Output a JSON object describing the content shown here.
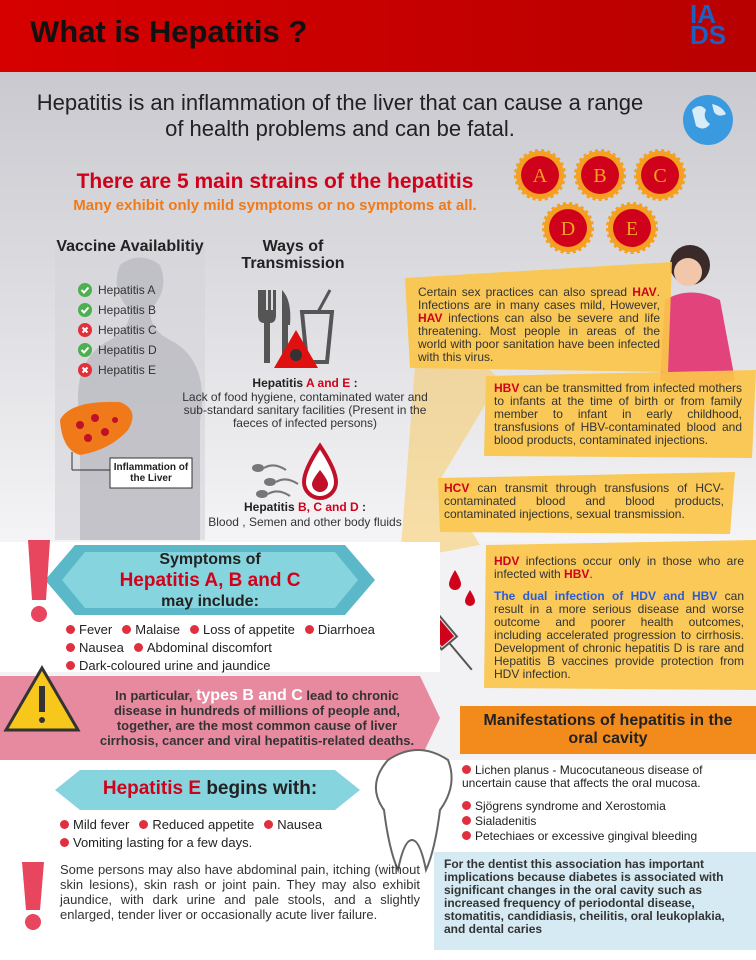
{
  "header": {
    "title": "What is Hepatitis ?",
    "logo": "IADS"
  },
  "intro": "Hepatitis is an inflammation of the liver that can cause a range of health problems and can be fatal.",
  "strains": {
    "title": "There are 5 main strains of the hepatitis",
    "subtitle": "Many exhibit only mild symptoms or no symptoms at all.",
    "letters": [
      "A",
      "B",
      "C",
      "D",
      "E"
    ]
  },
  "vaccine": {
    "title": "Vaccine Availablitiy",
    "items": [
      {
        "label": "Hepatitis A",
        "available": true
      },
      {
        "label": "Hepatitis B",
        "available": true
      },
      {
        "label": "Hepatitis C",
        "available": false
      },
      {
        "label": "Hepatitis D",
        "available": true
      },
      {
        "label": "Hepatitis E",
        "available": false
      }
    ]
  },
  "liver": {
    "label": "Inflammation of the Liver"
  },
  "transmission": {
    "title": "Ways of Transmission",
    "groups": [
      {
        "heading": [
          {
            "text": "Hepatitis "
          },
          {
            "text": "A and E",
            "color": "#d0021b"
          },
          {
            "text": " :"
          }
        ],
        "text": "Lack of food hygiene, contaminated water and sub-standard sanitary facilities (Present in the faeces of infected persons)"
      },
      {
        "heading": [
          {
            "text": "Hepatitis "
          },
          {
            "text": "B, C and D",
            "color": "#d0021b"
          },
          {
            "text": " :"
          }
        ],
        "text": "Blood , Semen and other body fluids"
      }
    ]
  },
  "notes": [
    [
      {
        "text": "Certain sex practices can also spread "
      },
      {
        "text": "HAV",
        "color": "#d0021b"
      },
      {
        "text": ". Infections are in many cases mild, However, "
      },
      {
        "text": "HAV",
        "color": "#d0021b"
      },
      {
        "text": " infections can also be severe and life threatening. Most people in areas of the world with poor sanitation have been infected with this virus."
      }
    ],
    [
      {
        "text": "HBV",
        "color": "#d0021b"
      },
      {
        "text": " can be transmitted from infected mothers to infants at the time of birth or from family member to infant in early childhood, transfusions of HBV-contaminated blood and blood products, contaminated injections."
      }
    ],
    [
      {
        "text": "HCV",
        "color": "#d0021b"
      },
      {
        "text": " can transmit through transfusions of HCV-contaminated blood and blood products, contaminated injections, sexual transmission."
      }
    ],
    [
      {
        "text": "HDV",
        "color": "#d0021b"
      },
      {
        "text": " infections occur only in those who are infected with "
      },
      {
        "text": "HBV",
        "color": "#d0021b"
      },
      {
        "text": "."
      }
    ],
    [
      {
        "text": "The dual infection of HDV and HBV",
        "color": "#2a5bd7"
      },
      {
        "text": " can result in a more serious disease and worse outcome and poorer health outcomes, including accelerated progression to cirrhosis. Development of chronic hepatitis D is rare and Hepatitis B vaccines provide protection from HDV infection."
      }
    ]
  ],
  "symptoms": {
    "title": [
      [
        {
          "text": "Symptoms of"
        }
      ],
      [
        {
          "text": "Hepatitis A, B and C",
          "color": "#d0021b"
        }
      ],
      [
        {
          "text": "may include:"
        }
      ]
    ],
    "items": [
      "Fever",
      "Malaise",
      "Loss of appetite",
      "Diarrhoea",
      "Nausea",
      "Abdominal discomfort",
      "Dark-coloured urine and jaundice"
    ]
  },
  "warning": [
    {
      "text": "In particular, "
    },
    {
      "text": "types B and C",
      "color": "#ffffff"
    },
    {
      "text": " lead to chronic disease in hundreds of millions of people and, together, are the most common cause of liver cirrhosis, cancer and viral hepatitis-related deaths."
    }
  ],
  "hepatitis_e": {
    "title": [
      {
        "text": "Hepatitis E",
        "color": "#d0021b"
      },
      {
        "text": " begins with:"
      }
    ],
    "items": [
      "Mild fever",
      "Reduced appetite",
      "Nausea",
      "Vomiting lasting for a few days."
    ],
    "extra": "Some persons may also have abdominal pain, itching (without skin lesions), skin rash or joint pain. They may also exhibit jaundice, with dark urine and pale stools, and a slightly enlarged, tender liver or occasionally acute liver failure."
  },
  "oral": {
    "title": "Manifestations of hepatitis in the oral cavity",
    "items": [
      "Lichen planus - Mucocutaneous disease of uncertain cause that affects the oral mucosa.",
      "Sjögrens syndrome and Xerostomia",
      "Sialadenitis",
      "Petechiaes or excessive gingival bleeding"
    ],
    "dentist": "For the dentist this association has important implications because diabetes is associated with significant changes in the oral cavity such as increased frequency of periodontal disease, stomatitis, candidiasis, cheilitis, oral leukoplakia, and dental caries"
  }
}
